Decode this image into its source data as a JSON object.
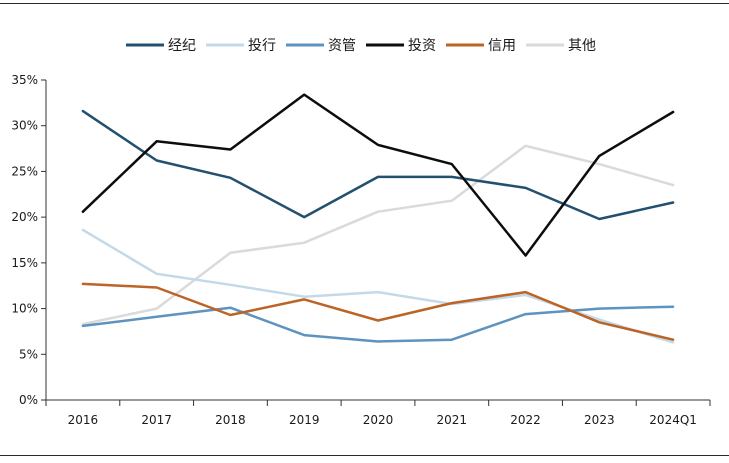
{
  "chart_data": {
    "type": "line",
    "title": "",
    "xlabel": "",
    "ylabel": "",
    "categories": [
      "2016",
      "2017",
      "2018",
      "2019",
      "2020",
      "2021",
      "2022",
      "2023",
      "2024Q1"
    ],
    "ylim": [
      0,
      35
    ],
    "yticks": [
      0,
      5,
      10,
      15,
      20,
      25,
      30,
      35
    ],
    "ytick_labels": [
      "0%",
      "5%",
      "10%",
      "15%",
      "20%",
      "25%",
      "30%",
      "35%"
    ],
    "legend_position": "top-center",
    "grid": false,
    "series": [
      {
        "name": "经纪",
        "color": "#23506e",
        "values": [
          31.6,
          26.2,
          24.3,
          20.0,
          24.4,
          24.4,
          23.2,
          19.8,
          21.6
        ]
      },
      {
        "name": "投行",
        "color": "#c4d9e8",
        "values": [
          18.6,
          13.8,
          12.6,
          11.3,
          11.8,
          10.5,
          11.5,
          8.8,
          6.3
        ]
      },
      {
        "name": "资管",
        "color": "#5e93bf",
        "values": [
          8.1,
          9.1,
          10.1,
          7.1,
          6.4,
          6.6,
          9.4,
          10.0,
          10.2
        ]
      },
      {
        "name": "投资",
        "color": "#0d0d0d",
        "values": [
          20.6,
          28.3,
          27.4,
          33.4,
          27.9,
          25.8,
          15.8,
          26.7,
          31.5
        ]
      },
      {
        "name": "信用",
        "color": "#bb6425",
        "values": [
          12.7,
          12.3,
          9.3,
          11.0,
          8.7,
          10.6,
          11.8,
          8.5,
          6.6
        ]
      },
      {
        "name": "其他",
        "color": "#dadada",
        "values": [
          8.3,
          10.0,
          16.1,
          17.2,
          20.6,
          21.8,
          27.8,
          25.8,
          23.5
        ]
      }
    ]
  }
}
